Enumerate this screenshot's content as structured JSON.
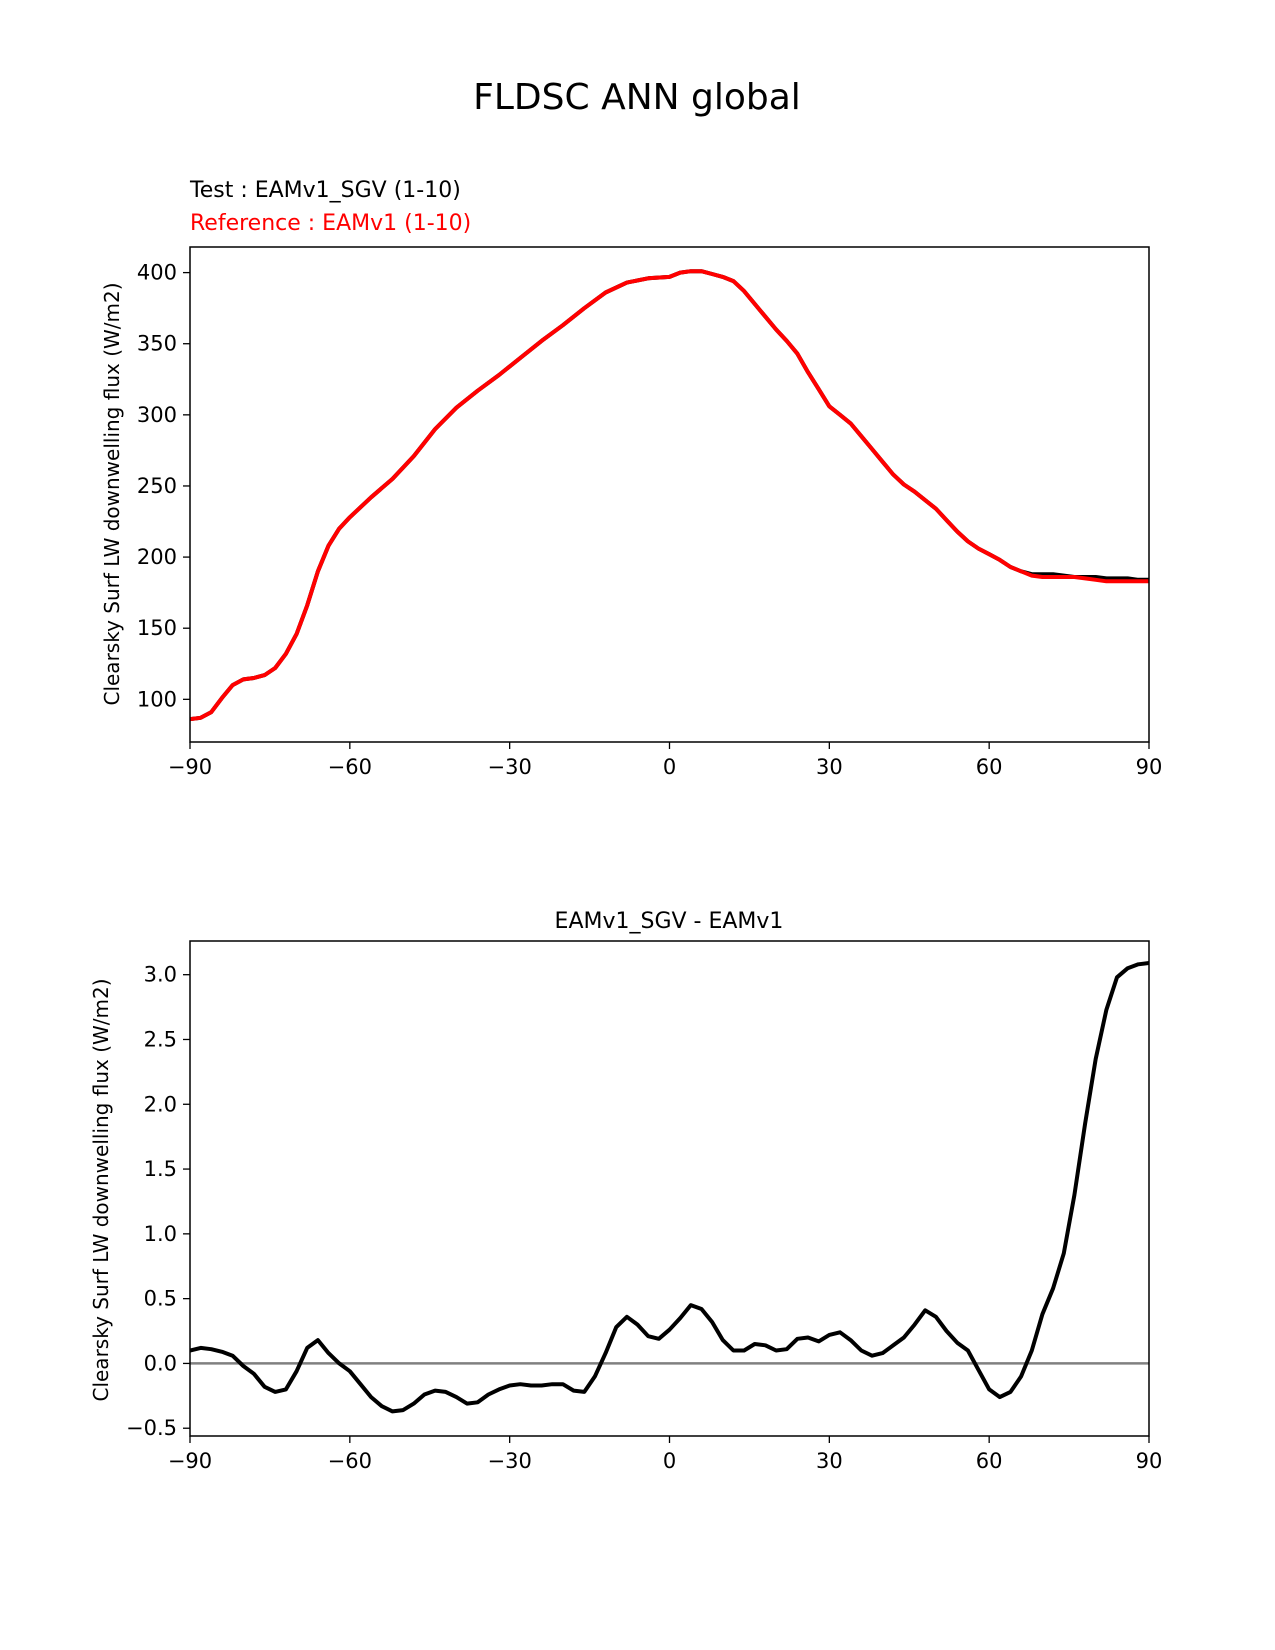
{
  "figure_title": "FLDSC ANN global",
  "colors": {
    "test": "#000000",
    "reference": "#ff0000",
    "difference": "#000000",
    "zero_line": "#808080"
  },
  "chart_data": [
    {
      "type": "line",
      "panel": "top",
      "legend_lines": [
        {
          "text": "Test : EAMv1_SGV (1-10)",
          "color": "#000000"
        },
        {
          "text": "Reference : EAMv1 (1-10)",
          "color": "#ff0000"
        }
      ],
      "title": "",
      "xlabel": "",
      "ylabel": "Clearsky Surf LW downwelling flux (W/m2)",
      "xlim": [
        -90,
        90
      ],
      "ylim": [
        70,
        418
      ],
      "xticks": [
        -90,
        -60,
        -30,
        0,
        30,
        60,
        90
      ],
      "xtick_labels": [
        "−90",
        "−60",
        "−30",
        "0",
        "30",
        "60",
        "90"
      ],
      "yticks": [
        100,
        150,
        200,
        250,
        300,
        350,
        400
      ],
      "ytick_labels": [
        "100",
        "150",
        "200",
        "250",
        "300",
        "350",
        "400"
      ],
      "x": [
        -90,
        -88,
        -86,
        -84,
        -82,
        -80,
        -78,
        -76,
        -74,
        -72,
        -70,
        -68,
        -66,
        -64,
        -62,
        -60,
        -56,
        -52,
        -48,
        -44,
        -40,
        -36,
        -32,
        -28,
        -24,
        -20,
        -16,
        -12,
        -8,
        -4,
        0,
        2,
        4,
        6,
        8,
        10,
        12,
        14,
        16,
        18,
        20,
        22,
        24,
        26,
        28,
        30,
        32,
        34,
        36,
        38,
        40,
        42,
        44,
        46,
        48,
        50,
        52,
        54,
        56,
        58,
        60,
        62,
        64,
        66,
        68,
        70,
        72,
        74,
        76,
        78,
        80,
        82,
        84,
        86,
        88,
        90
      ],
      "series": [
        {
          "name": "Test : EAMv1_SGV (1-10)",
          "color": "#000000",
          "values": [
            86,
            87,
            91,
            101,
            110,
            114,
            115,
            117,
            122,
            132,
            146,
            166,
            190,
            208,
            220,
            228,
            242,
            255,
            271,
            290,
            305,
            317,
            328,
            340,
            352,
            363,
            375,
            386,
            393,
            396,
            397,
            400,
            401,
            401,
            399,
            397,
            394,
            387,
            378,
            369,
            360,
            352,
            343,
            330,
            318,
            306,
            300,
            294,
            285,
            276,
            267,
            258,
            251,
            246,
            240,
            234,
            226,
            218,
            211,
            206,
            202,
            198,
            193,
            190,
            188,
            188,
            188,
            187,
            186,
            186,
            186,
            185,
            185,
            185,
            184,
            184
          ]
        },
        {
          "name": "Reference : EAMv1 (1-10)",
          "color": "#ff0000",
          "values": [
            86,
            87,
            91,
            101,
            110,
            114,
            115,
            117,
            122,
            132,
            146,
            166,
            190,
            208,
            220,
            228,
            242,
            255,
            271,
            290,
            305,
            317,
            328,
            340,
            352,
            363,
            375,
            386,
            393,
            396,
            397,
            400,
            401,
            401,
            399,
            397,
            394,
            387,
            378,
            369,
            360,
            352,
            343,
            330,
            318,
            306,
            300,
            294,
            285,
            276,
            267,
            258,
            251,
            246,
            240,
            234,
            226,
            218,
            211,
            206,
            202,
            198,
            193,
            190,
            187,
            186,
            186,
            186,
            186,
            185,
            184,
            183,
            183,
            183,
            183,
            183
          ]
        }
      ]
    },
    {
      "type": "line",
      "panel": "bottom",
      "title": "EAMv1_SGV - EAMv1",
      "xlabel": "",
      "ylabel": "Clearsky Surf LW downwelling flux (W/m2)",
      "xlim": [
        -90,
        90
      ],
      "ylim": [
        -0.56,
        3.26
      ],
      "xticks": [
        -90,
        -60,
        -30,
        0,
        30,
        60,
        90
      ],
      "xtick_labels": [
        "−90",
        "−60",
        "−30",
        "0",
        "30",
        "60",
        "90"
      ],
      "yticks": [
        -0.5,
        0.0,
        0.5,
        1.0,
        1.5,
        2.0,
        2.5,
        3.0
      ],
      "ytick_labels": [
        "−0.5",
        "0.0",
        "0.5",
        "1.0",
        "1.5",
        "2.0",
        "2.5",
        "3.0"
      ],
      "reference_line": 0.0,
      "x": [
        -90,
        -88,
        -86,
        -84,
        -82,
        -80,
        -78,
        -76,
        -74,
        -72,
        -70,
        -68,
        -66,
        -64,
        -62,
        -60,
        -58,
        -56,
        -54,
        -52,
        -50,
        -48,
        -46,
        -44,
        -42,
        -40,
        -38,
        -36,
        -34,
        -32,
        -30,
        -28,
        -26,
        -24,
        -22,
        -20,
        -18,
        -16,
        -14,
        -12,
        -10,
        -8,
        -6,
        -4,
        -2,
        0,
        2,
        4,
        6,
        8,
        10,
        12,
        14,
        16,
        18,
        20,
        22,
        24,
        26,
        28,
        30,
        32,
        34,
        36,
        38,
        40,
        42,
        44,
        46,
        48,
        50,
        52,
        54,
        56,
        58,
        60,
        62,
        64,
        66,
        68,
        70,
        72,
        74,
        76,
        78,
        80,
        82,
        84,
        86,
        88,
        90
      ],
      "series": [
        {
          "name": "EAMv1_SGV - EAMv1",
          "color": "#000000",
          "values": [
            0.1,
            0.12,
            0.11,
            0.09,
            0.06,
            -0.02,
            -0.08,
            -0.18,
            -0.22,
            -0.2,
            -0.06,
            0.12,
            0.18,
            0.08,
            0.0,
            -0.06,
            -0.16,
            -0.26,
            -0.33,
            -0.37,
            -0.36,
            -0.31,
            -0.24,
            -0.21,
            -0.22,
            -0.26,
            -0.31,
            -0.3,
            -0.24,
            -0.2,
            -0.17,
            -0.16,
            -0.17,
            -0.17,
            -0.16,
            -0.16,
            -0.21,
            -0.22,
            -0.1,
            0.08,
            0.28,
            0.36,
            0.3,
            0.21,
            0.19,
            0.26,
            0.35,
            0.45,
            0.42,
            0.32,
            0.18,
            0.1,
            0.1,
            0.15,
            0.14,
            0.1,
            0.11,
            0.19,
            0.2,
            0.17,
            0.22,
            0.24,
            0.18,
            0.1,
            0.06,
            0.08,
            0.14,
            0.2,
            0.3,
            0.41,
            0.36,
            0.25,
            0.16,
            0.1,
            -0.05,
            -0.2,
            -0.26,
            -0.22,
            -0.1,
            0.1,
            0.38,
            0.58,
            0.85,
            1.3,
            1.85,
            2.35,
            2.73,
            2.98,
            3.05,
            3.08,
            3.09
          ]
        }
      ]
    }
  ]
}
